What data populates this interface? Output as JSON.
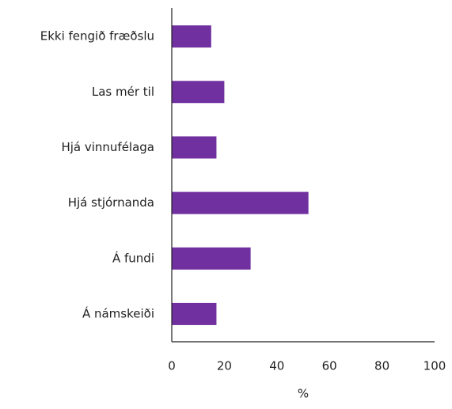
{
  "chart_data": {
    "type": "barh",
    "x_label": "%",
    "categories": [
      "Ekki fengið fræðslu",
      "Las mér til",
      "Hjá vinnufélaga",
      "Hjá stjórnanda",
      "Á fundi",
      "Á námskeiði"
    ],
    "values": [
      15,
      20,
      17,
      52,
      30,
      17
    ],
    "color": "#7030a0",
    "xlim": [
      0,
      100
    ],
    "xticks": [
      0,
      20,
      40,
      60,
      80,
      100
    ]
  }
}
